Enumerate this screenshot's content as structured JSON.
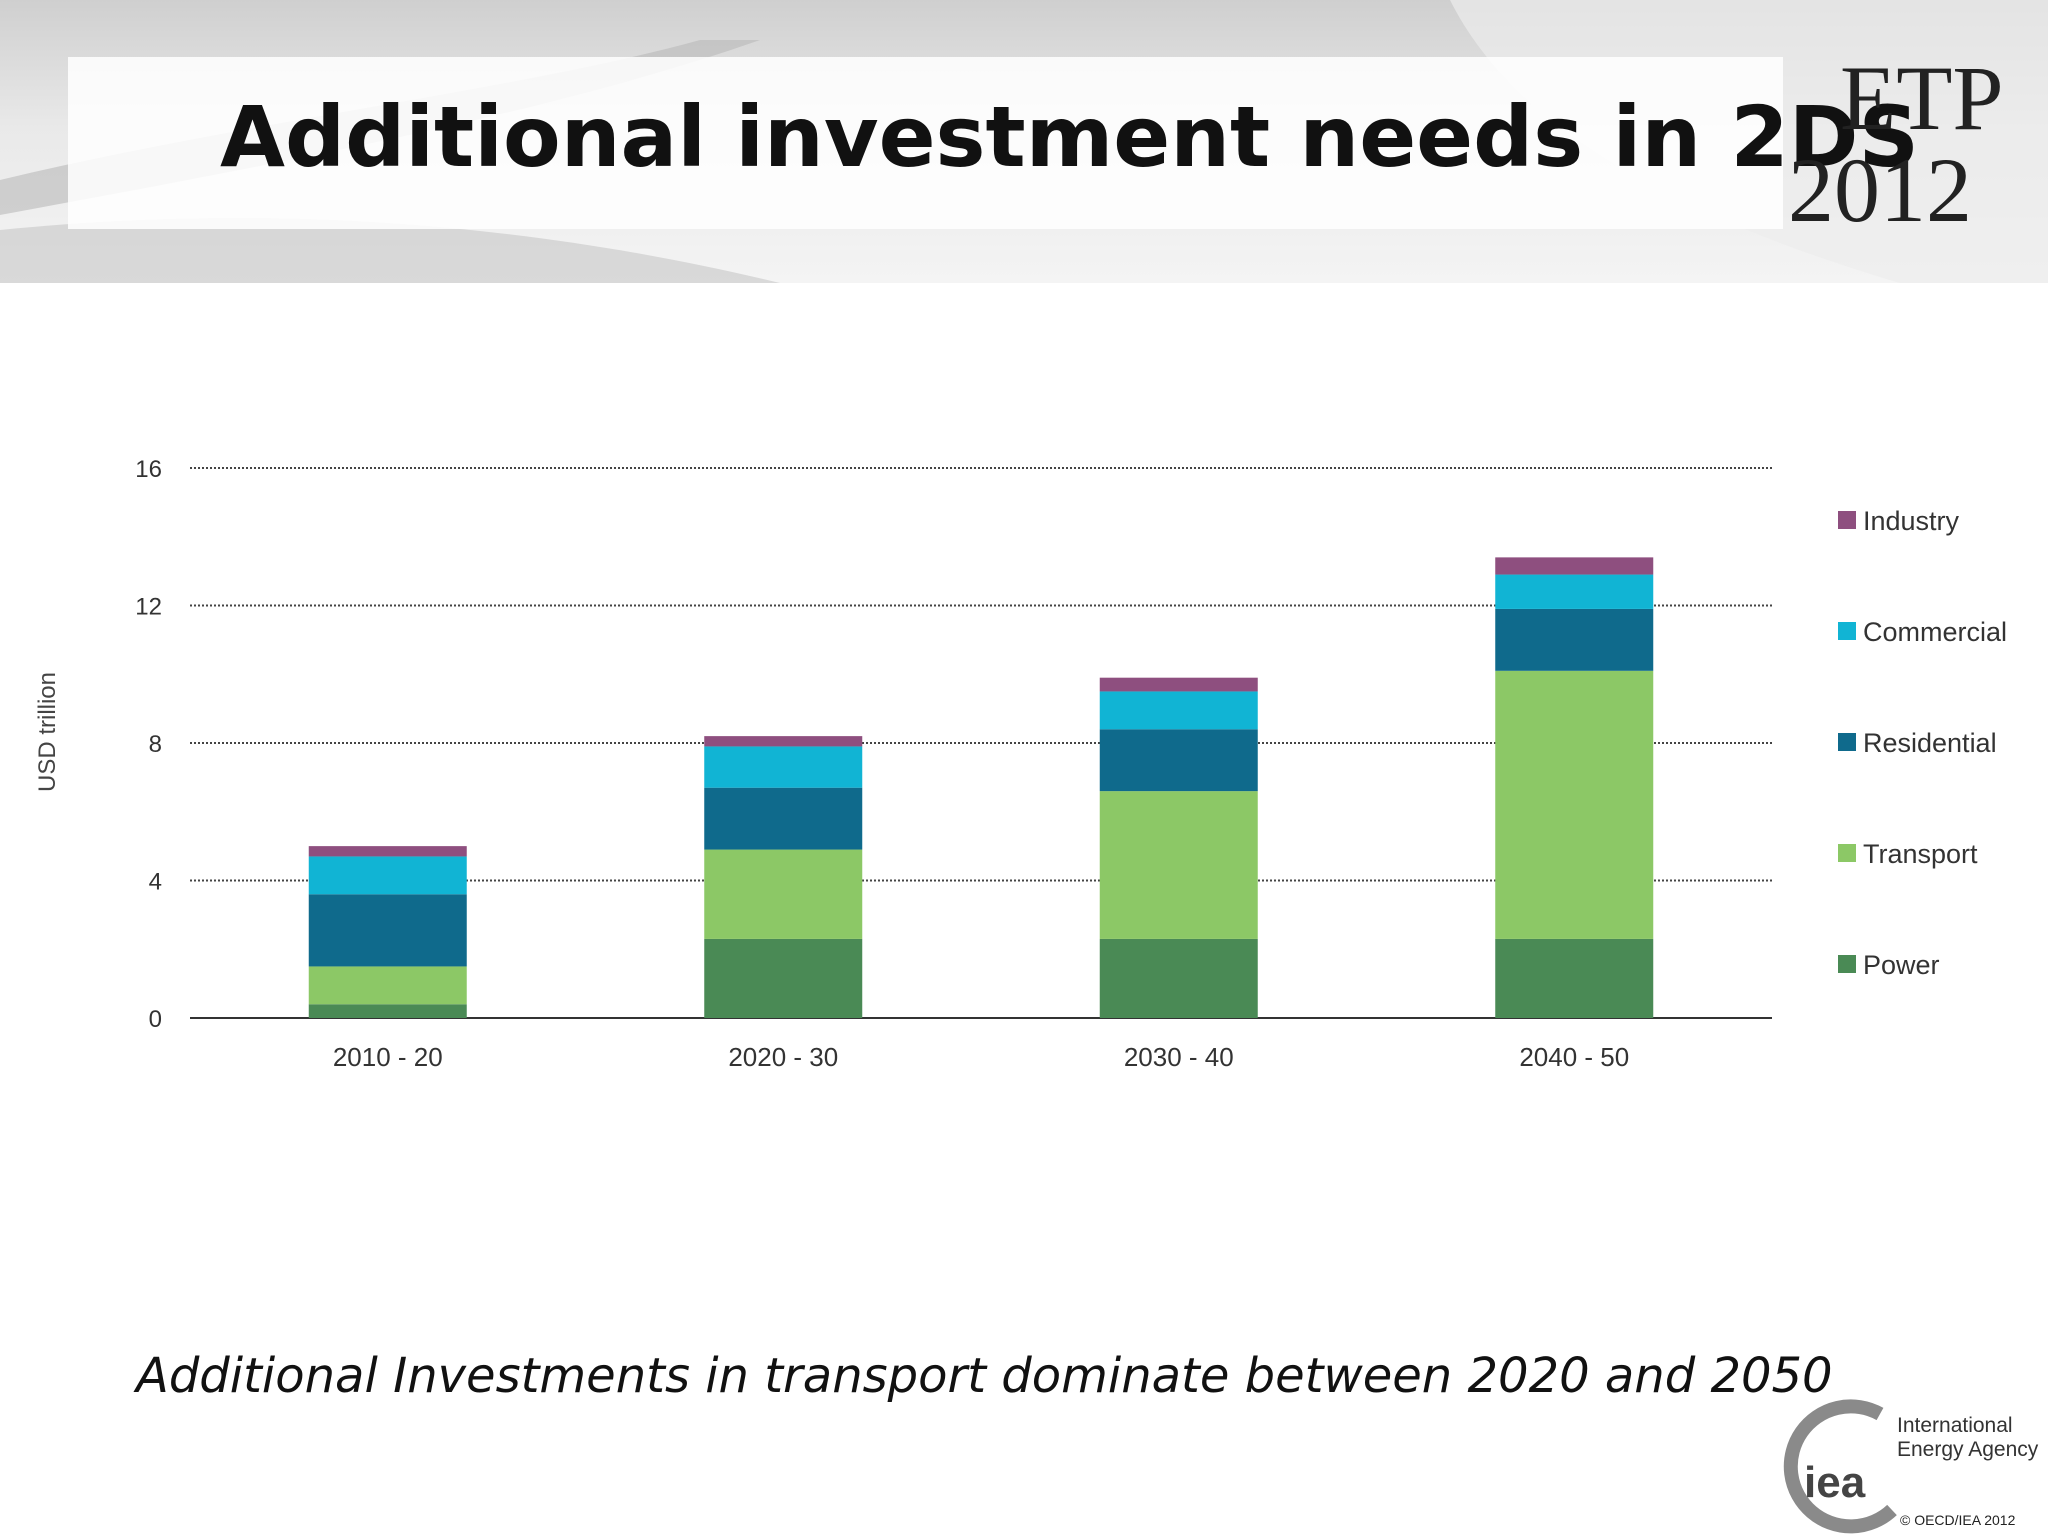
{
  "slide": {
    "title": "Additional investment needs in 2DS",
    "logo_line1": "ETP",
    "logo_line2": "2012",
    "caption": "Additional Investments in transport dominate between 2020 and 2050",
    "iea_short": "iea",
    "iea_name_line1": "International",
    "iea_name_line2": "Energy Agency",
    "copyright": "© OECD/IEA 2012"
  },
  "chart_data": {
    "type": "bar",
    "stacked": true,
    "title": "",
    "xlabel": "",
    "ylabel": "USD trillion",
    "ylim": [
      0,
      16
    ],
    "yticks": [
      0,
      4,
      8,
      12,
      16
    ],
    "grid": true,
    "legend_position": "right",
    "categories": [
      "2010 - 20",
      "2020 - 30",
      "2030 - 40",
      "2040 - 50"
    ],
    "series": [
      {
        "name": "Power",
        "color": "#4a8a55",
        "values": [
          0.4,
          2.3,
          2.3,
          2.3
        ]
      },
      {
        "name": "Transport",
        "color": "#8cc866",
        "values": [
          1.1,
          2.6,
          4.3,
          7.8
        ]
      },
      {
        "name": "Residential",
        "color": "#0f6a8c",
        "values": [
          2.1,
          1.8,
          1.8,
          1.8
        ]
      },
      {
        "name": "Commercial",
        "color": "#11b4d4",
        "values": [
          1.1,
          1.2,
          1.1,
          1.0
        ]
      },
      {
        "name": "Industry",
        "color": "#8e4f7f",
        "values": [
          0.3,
          0.3,
          0.4,
          0.5
        ]
      }
    ]
  }
}
